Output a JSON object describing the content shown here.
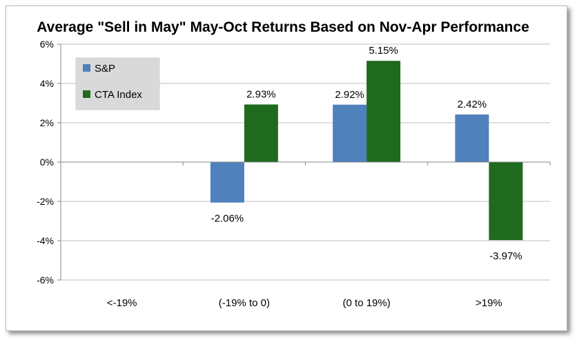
{
  "chart_data": {
    "type": "bar",
    "title": "Average \"Sell in May\" May-Oct Returns Based on Nov-Apr Performance",
    "categories": [
      "<-19%",
      "(-19% to 0)",
      "(0 to 19%)",
      ">19%"
    ],
    "series": [
      {
        "name": "S&P",
        "color": "#4f81bd",
        "values": [
          null,
          -2.06,
          2.92,
          2.42
        ],
        "labels": [
          "",
          "-2.06%",
          "2.92%",
          "2.42%"
        ]
      },
      {
        "name": "CTA Index",
        "color": "#1e6b1e",
        "values": [
          null,
          2.93,
          5.15,
          -3.97
        ],
        "labels": [
          "",
          "2.93%",
          "5.15%",
          "-3.97%"
        ]
      }
    ],
    "yticks": [
      6,
      4,
      2,
      0,
      -2,
      -4,
      -6
    ],
    "ytick_labels": [
      "6%",
      "4%",
      "2%",
      "0%",
      "-2%",
      "-4%",
      "-6%"
    ],
    "ylim": [
      -6,
      6
    ],
    "grid": true,
    "legend": "top-left",
    "xlabel": "",
    "ylabel": ""
  }
}
